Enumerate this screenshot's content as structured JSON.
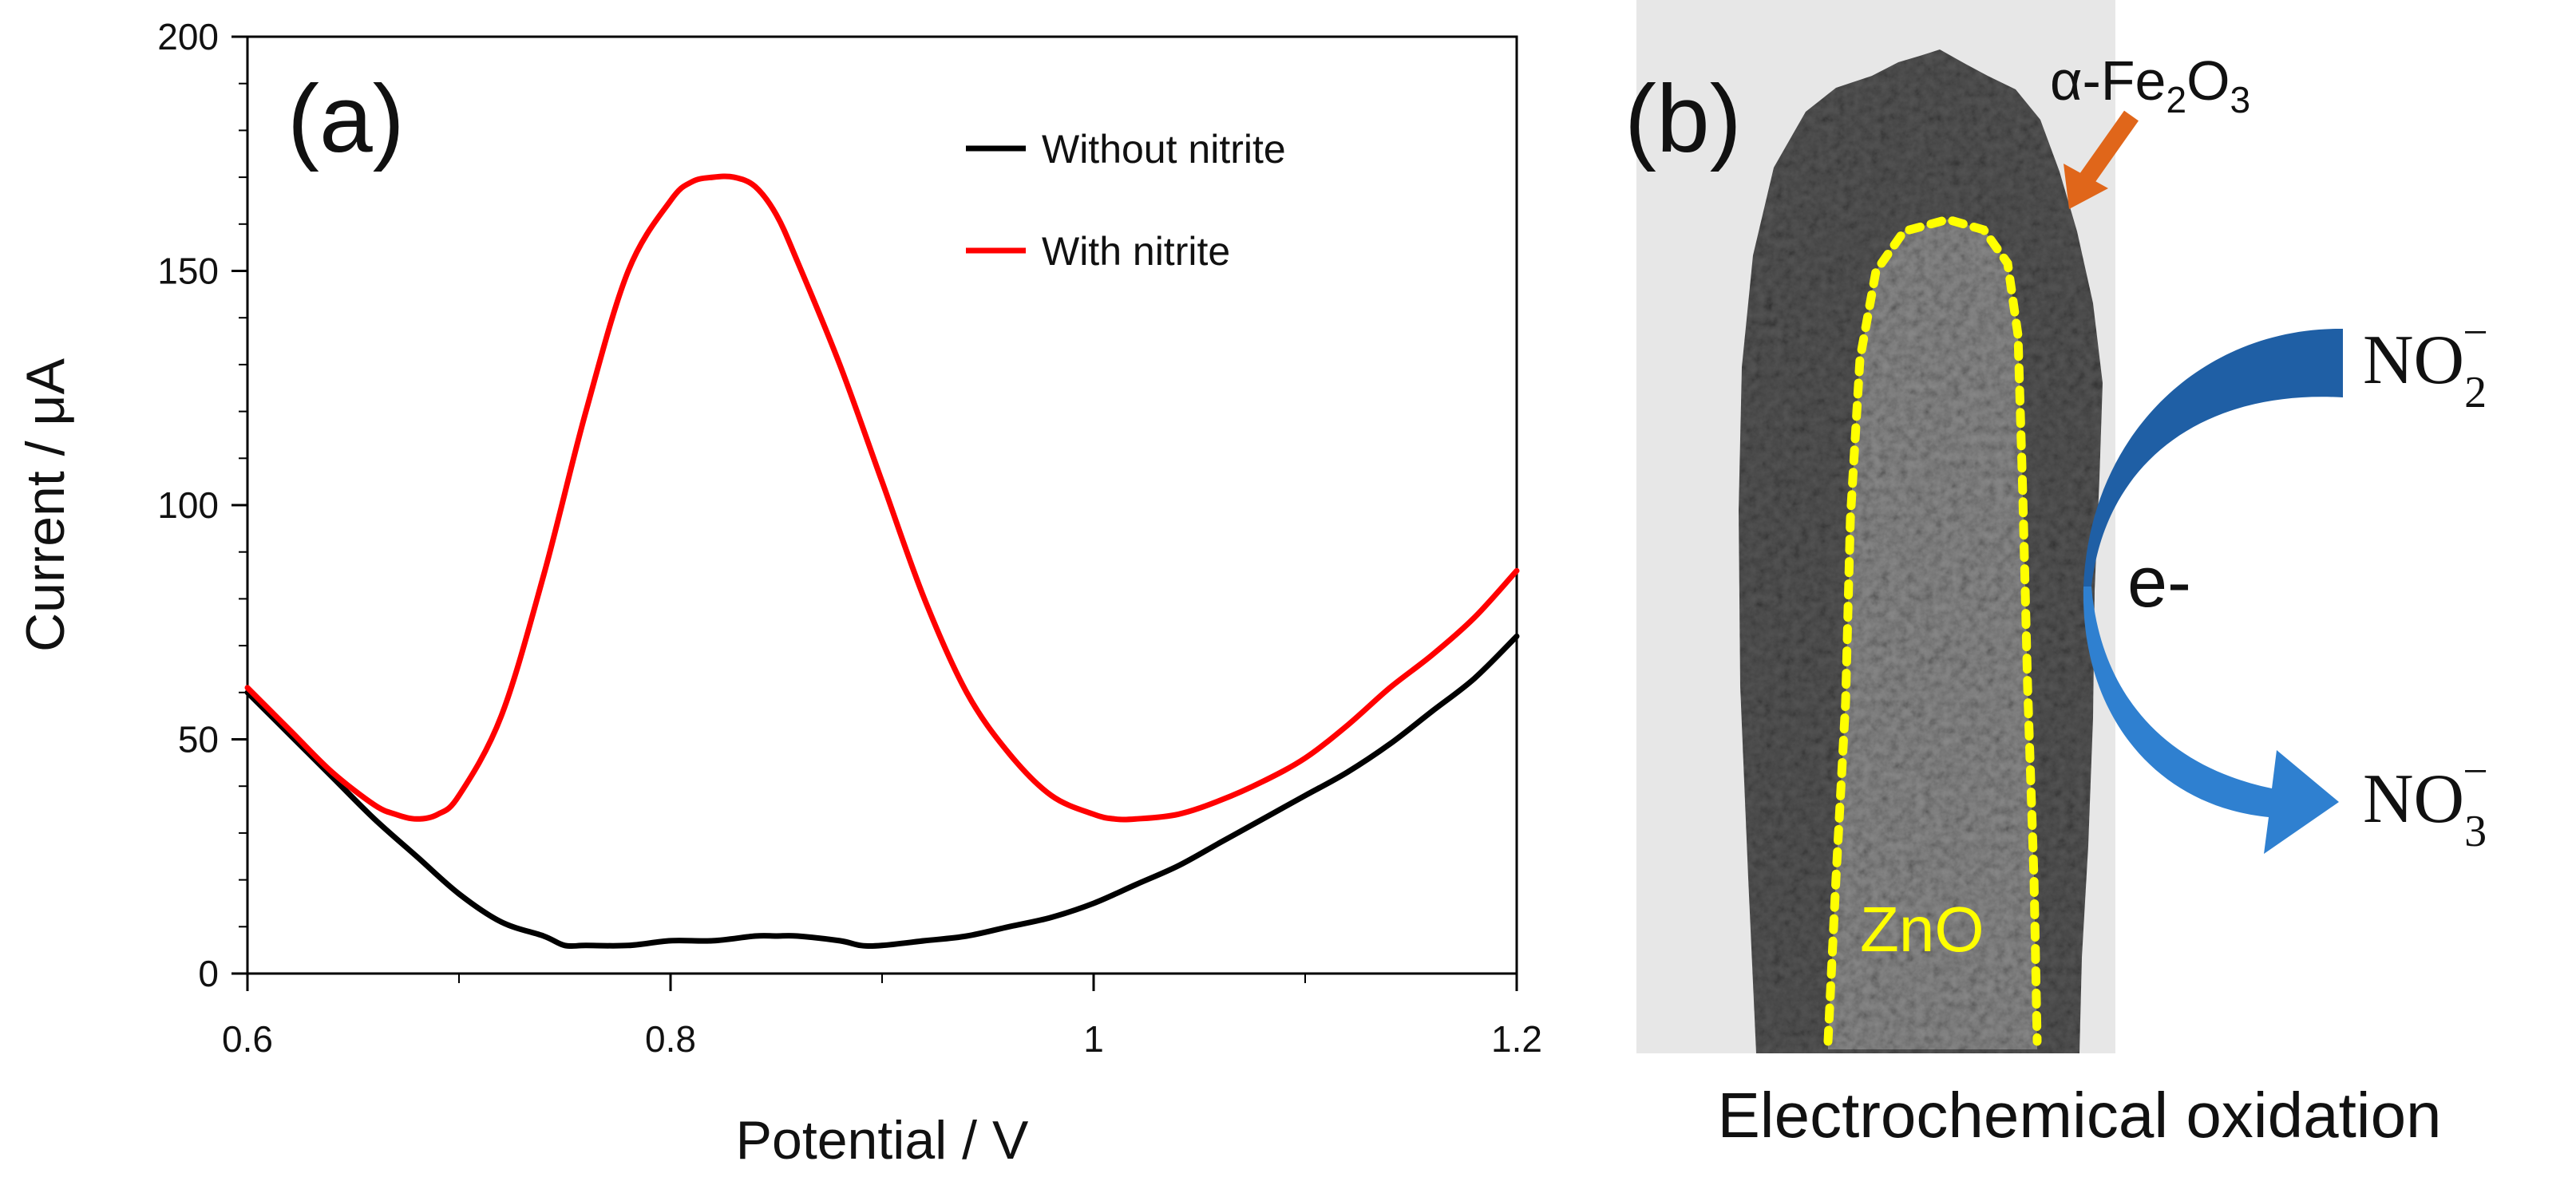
{
  "chart_data": {
    "type": "line",
    "panel_label": "(a)",
    "xlabel": "Potential / V",
    "ylabel": "Current / μA",
    "xlim": [
      0.6,
      1.2
    ],
    "ylim": [
      0,
      200
    ],
    "x_ticks": [
      0.6,
      0.8,
      1.0,
      1.2
    ],
    "x_tick_labels": [
      "0.6",
      "0.8",
      "1",
      "1.2"
    ],
    "y_ticks": [
      0,
      50,
      100,
      150,
      200
    ],
    "y_tick_labels": [
      "0",
      "50",
      "100",
      "150",
      "200"
    ],
    "legend_position": "top-right",
    "series": [
      {
        "name": "Without nitrite",
        "color": "#000000",
        "x": [
          0.6,
          0.62,
          0.64,
          0.66,
          0.68,
          0.7,
          0.72,
          0.74,
          0.75,
          0.76,
          0.78,
          0.8,
          0.82,
          0.84,
          0.85,
          0.86,
          0.88,
          0.89,
          0.9,
          0.92,
          0.94,
          0.96,
          0.98,
          1.0,
          1.02,
          1.04,
          1.06,
          1.08,
          1.1,
          1.12,
          1.14,
          1.16,
          1.18,
          1.2
        ],
        "y": [
          60,
          51,
          42,
          33,
          25,
          17,
          11,
          8,
          6,
          6,
          6,
          7,
          7,
          8,
          8,
          8,
          7,
          6,
          6,
          7,
          8,
          10,
          12,
          15,
          19,
          23,
          28,
          33,
          38,
          43,
          49,
          56,
          63,
          72
        ]
      },
      {
        "name": "With nitrite",
        "color": "#ff0000",
        "x": [
          0.6,
          0.62,
          0.64,
          0.66,
          0.67,
          0.68,
          0.69,
          0.7,
          0.72,
          0.74,
          0.76,
          0.78,
          0.8,
          0.81,
          0.82,
          0.83,
          0.84,
          0.85,
          0.86,
          0.88,
          0.9,
          0.92,
          0.94,
          0.96,
          0.98,
          1.0,
          1.01,
          1.02,
          1.04,
          1.06,
          1.08,
          1.1,
          1.12,
          1.14,
          1.16,
          1.18,
          1.2
        ],
        "y": [
          61,
          52,
          43,
          36,
          34,
          33,
          34,
          38,
          55,
          85,
          120,
          150,
          165,
          169,
          170,
          170,
          168,
          162,
          152,
          130,
          105,
          80,
          60,
          47,
          38,
          34,
          33,
          33,
          34,
          37,
          41,
          46,
          53,
          61,
          68,
          76,
          86
        ]
      }
    ]
  },
  "panel_b": {
    "label": "(b)",
    "fe_label_prefix": "α-Fe",
    "fe_sub1": "2",
    "fe_mid": "O",
    "fe_sub2": "3",
    "zno_label": "ZnO",
    "e_label": "e-",
    "no2_main": "NO",
    "no2_sub": "2",
    "no2_sup": "−",
    "no3_main": "NO",
    "no3_sub": "3",
    "no3_sup": "−",
    "caption": "Electrochemical oxidation",
    "colors": {
      "fe_arrow": "#e0661a",
      "arrow_dark": "#1f5fa5",
      "arrow_light": "#2f80d0",
      "zno_outline": "#ffff00"
    }
  }
}
